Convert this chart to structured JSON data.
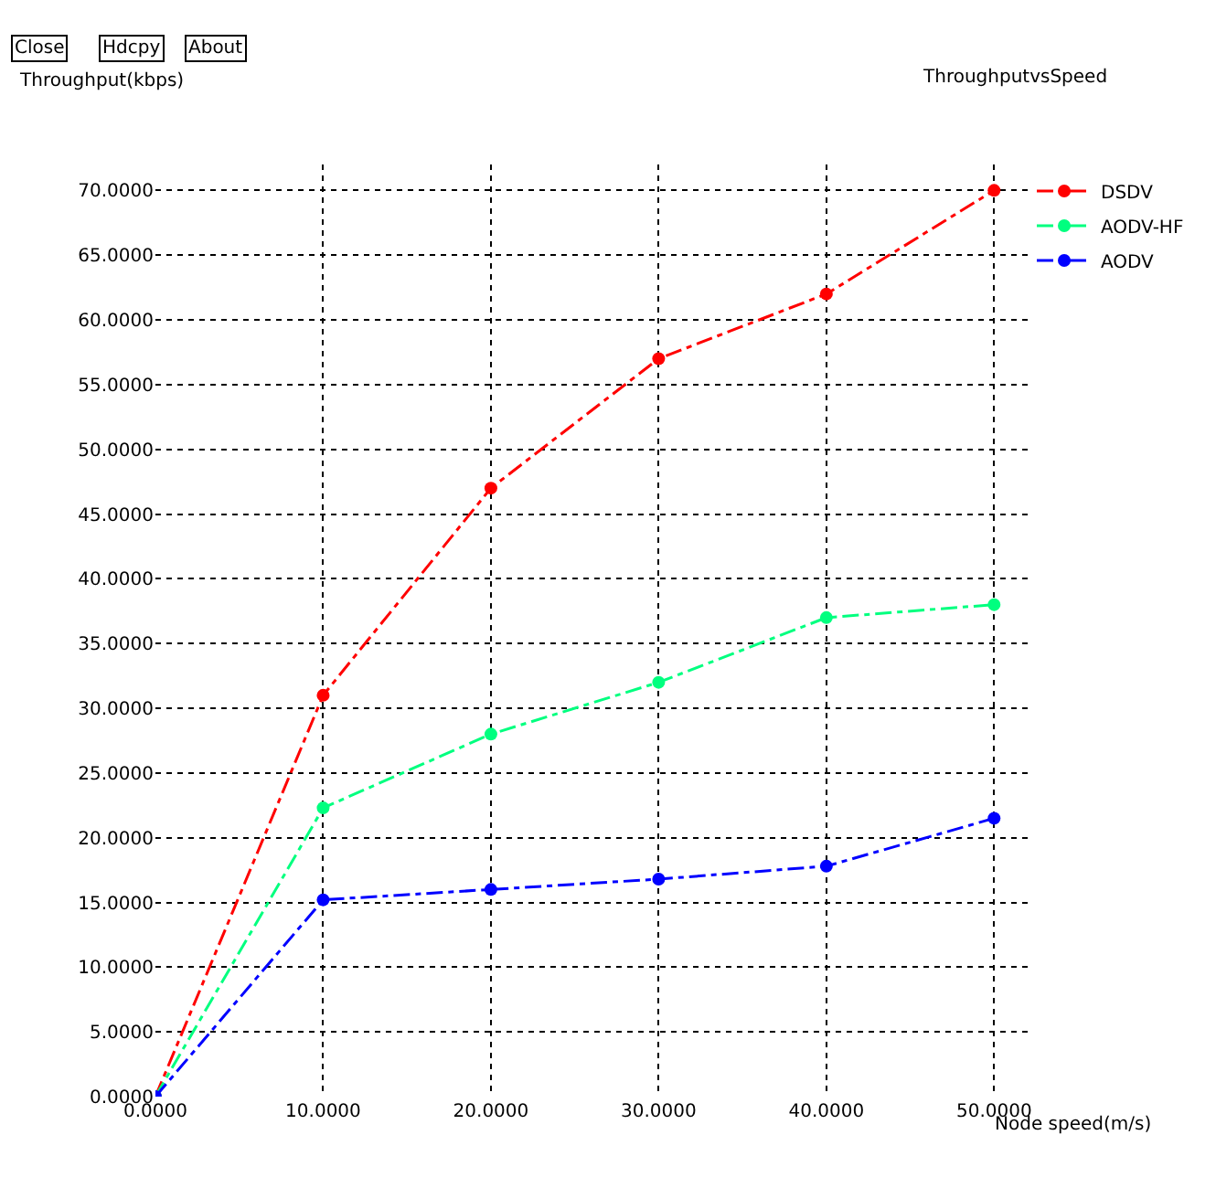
{
  "chart_data": {
    "type": "line",
    "title": "ThroughputvsSpeed",
    "ylabel": "Throughput(kbps)",
    "xlabel": "Node speed(m/s)",
    "annotations": [
      "Close",
      "Hdcpy",
      "About"
    ],
    "x": [
      0,
      10,
      20,
      30,
      40,
      50
    ],
    "series": [
      {
        "name": "DSDV",
        "color": "#ff0000",
        "values": [
          0,
          31,
          47,
          57,
          62,
          70
        ]
      },
      {
        "name": "AODV-HF",
        "color": "#00ff7f",
        "values": [
          0,
          22.3,
          28,
          32,
          37,
          38
        ]
      },
      {
        "name": "AODV",
        "color": "#0000ff",
        "values": [
          0,
          15.2,
          16,
          16.8,
          17.8,
          21.5
        ]
      }
    ],
    "xlim": [
      0,
      52
    ],
    "ylim": [
      0,
      72
    ],
    "xticks": [
      {
        "value": 0,
        "label": "0.0000"
      },
      {
        "value": 10,
        "label": "10.0000"
      },
      {
        "value": 20,
        "label": "20.0000"
      },
      {
        "value": 30,
        "label": "30.0000"
      },
      {
        "value": 40,
        "label": "40.0000"
      },
      {
        "value": 50,
        "label": "50.0000"
      }
    ],
    "yticks": [
      {
        "value": 0,
        "label": "0.0000"
      },
      {
        "value": 5,
        "label": "5.0000"
      },
      {
        "value": 10,
        "label": "10.0000"
      },
      {
        "value": 15,
        "label": "15.0000"
      },
      {
        "value": 20,
        "label": "20.0000"
      },
      {
        "value": 25,
        "label": "25.0000"
      },
      {
        "value": 30,
        "label": "30.0000"
      },
      {
        "value": 35,
        "label": "35.0000"
      },
      {
        "value": 40,
        "label": "40.0000"
      },
      {
        "value": 45,
        "label": "45.0000"
      },
      {
        "value": 50,
        "label": "50.0000"
      },
      {
        "value": 55,
        "label": "55.0000"
      },
      {
        "value": 60,
        "label": "60.0000"
      },
      {
        "value": 65,
        "label": "65.0000"
      },
      {
        "value": 70,
        "label": "70.0000"
      }
    ],
    "grid": true,
    "legend": "top right",
    "marker": "circle",
    "line_style": "dashed"
  }
}
